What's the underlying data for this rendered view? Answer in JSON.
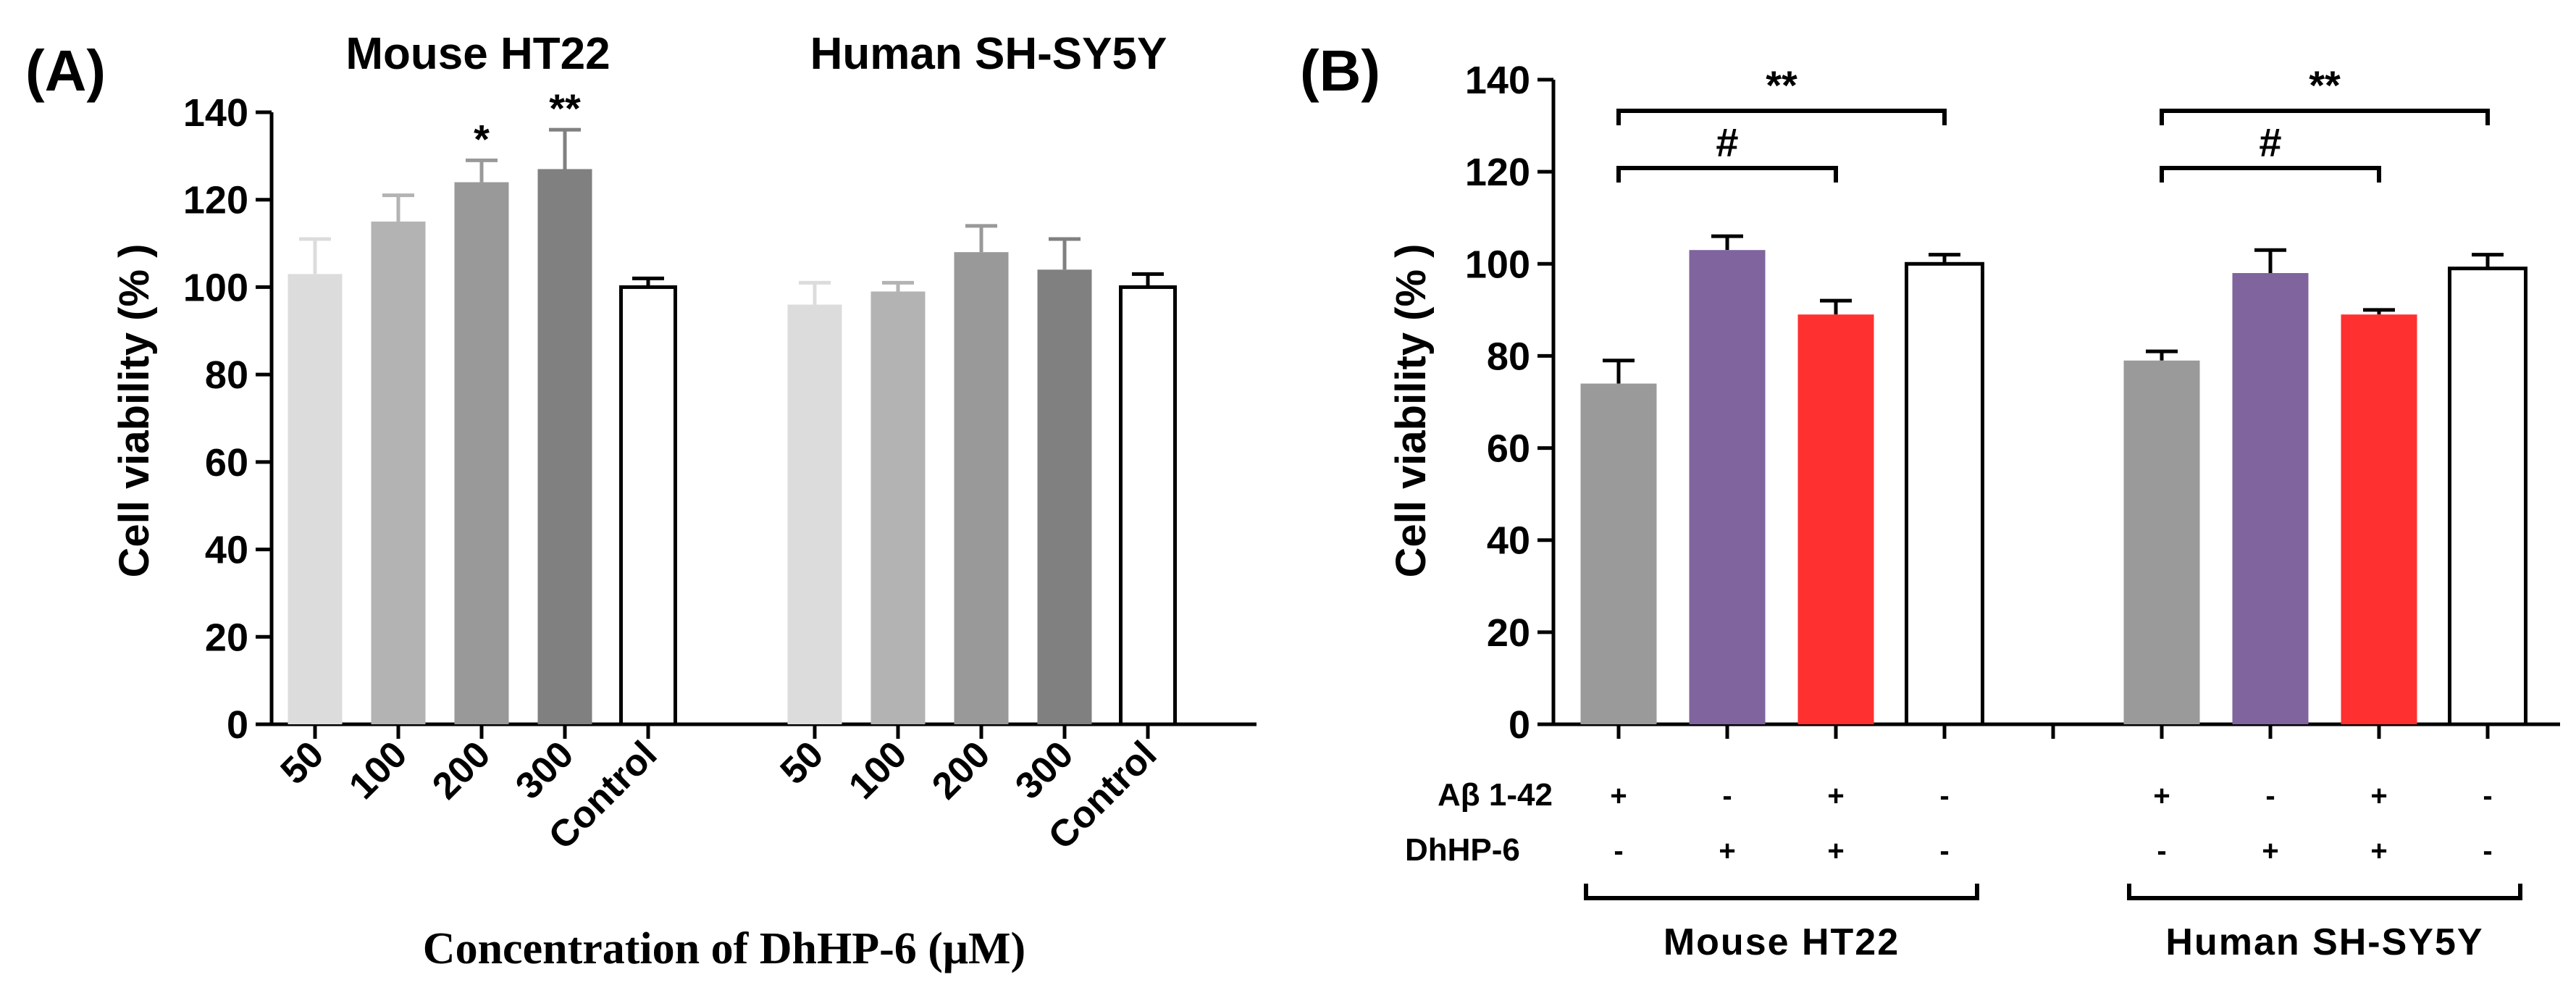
{
  "chart_data": [
    {
      "type": "bar",
      "panel_label": "(A)",
      "ylabel": "Cell viability (% )",
      "xlabel": "Concentration of DhHP-6 (μM)",
      "ylim": [
        0,
        140
      ],
      "yticks": [
        0,
        20,
        40,
        60,
        80,
        100,
        120,
        140
      ],
      "groups": [
        {
          "name": "Mouse HT22",
          "categories": [
            "50",
            "100",
            "200",
            "300",
            "Control"
          ],
          "values": [
            103,
            115,
            124,
            127,
            100
          ],
          "errors": [
            8,
            6,
            5,
            9,
            2
          ],
          "colors": [
            "#dcdcdc",
            "#b3b3b3",
            "#999999",
            "#808080",
            "#ffffff"
          ],
          "annotations": [
            "",
            "",
            "*",
            "**",
            ""
          ]
        },
        {
          "name": "Human SH-SY5Y",
          "categories": [
            "50",
            "100",
            "200",
            "300",
            "Control"
          ],
          "values": [
            96,
            99,
            108,
            104,
            100
          ],
          "errors": [
            5,
            2,
            6,
            7,
            3
          ],
          "colors": [
            "#dcdcdc",
            "#b3b3b3",
            "#999999",
            "#808080",
            "#ffffff"
          ],
          "annotations": [
            "",
            "",
            "",
            "",
            ""
          ]
        }
      ]
    },
    {
      "type": "bar",
      "panel_label": "(B)",
      "ylabel": "Cell viability (% )",
      "ylim": [
        0,
        140
      ],
      "yticks": [
        0,
        20,
        40,
        60,
        80,
        100,
        120,
        140
      ],
      "row_labels": [
        "Aβ 1-42",
        "DhHP-6"
      ],
      "groups": [
        {
          "name": "Mouse HT22",
          "values": [
            74,
            103,
            89,
            100
          ],
          "errors": [
            5,
            3,
            3,
            2
          ],
          "colors": [
            "#9a9a9a",
            "#7f649e",
            "#ff3030",
            "#ffffff"
          ],
          "abeta": [
            "+",
            "-",
            "+",
            "-"
          ],
          "dhhp6": [
            "-",
            "+",
            "+",
            "-"
          ],
          "brackets": [
            {
              "from": 0,
              "to": 3,
              "label": "**",
              "level": 2
            },
            {
              "from": 0,
              "to": 2,
              "label": "#",
              "level": 1
            }
          ]
        },
        {
          "name": "Human SH-SY5Y",
          "values": [
            79,
            98,
            89,
            99
          ],
          "errors": [
            2,
            5,
            1,
            3
          ],
          "colors": [
            "#9a9a9a",
            "#7f649e",
            "#ff3030",
            "#ffffff"
          ],
          "abeta": [
            "+",
            "-",
            "+",
            "-"
          ],
          "dhhp6": [
            "-",
            "+",
            "+",
            "-"
          ],
          "brackets": [
            {
              "from": 0,
              "to": 3,
              "label": "**",
              "level": 2
            },
            {
              "from": 0,
              "to": 2,
              "label": "#",
              "level": 1
            }
          ]
        }
      ]
    }
  ]
}
